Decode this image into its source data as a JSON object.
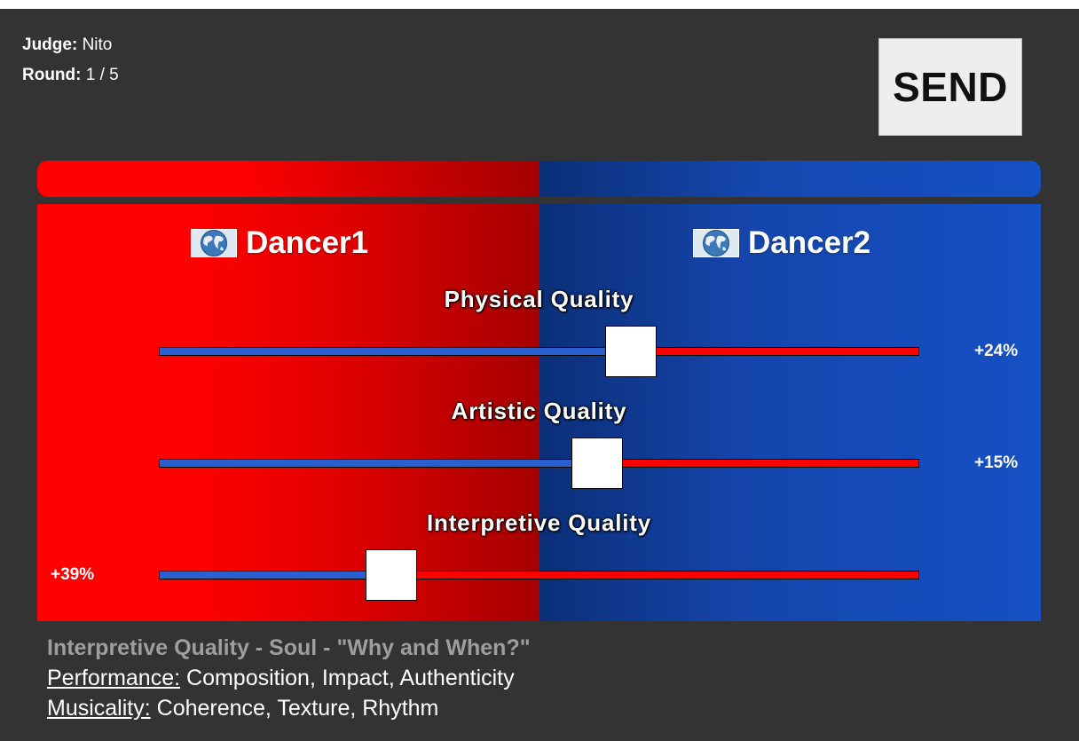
{
  "header": {
    "judge_label": "Judge:",
    "judge_value": "Nito",
    "round_label": "Round:",
    "round_value": "1 / 5"
  },
  "send_button": {
    "label": "SEND"
  },
  "colors": {
    "red": "#ff0000",
    "blue": "#1550c4",
    "background": "#333333"
  },
  "dancers": [
    {
      "name": "Dancer1",
      "icon": "world-flag-icon"
    },
    {
      "name": "Dancer2",
      "icon": "world-flag-icon"
    }
  ],
  "criteria": [
    {
      "label": "Physical Quality",
      "value_label": "+24%",
      "favors": "Dancer2",
      "slider_value": 0.62
    },
    {
      "label": "Artistic Quality",
      "value_label": "+15%",
      "favors": "Dancer2",
      "slider_value": 0.575
    },
    {
      "label": "Interpretive Quality",
      "value_label": "+39%",
      "favors": "Dancer1",
      "slider_value": 0.305
    }
  ],
  "info": {
    "heading": "Interpretive Quality - Soul - \"Why and When?\"",
    "lines": [
      {
        "label": "Performance:",
        "text": " Composition, Impact, Authenticity"
      },
      {
        "label": "Musicality:",
        "text": " Coherence, Texture, Rhythm"
      }
    ]
  }
}
